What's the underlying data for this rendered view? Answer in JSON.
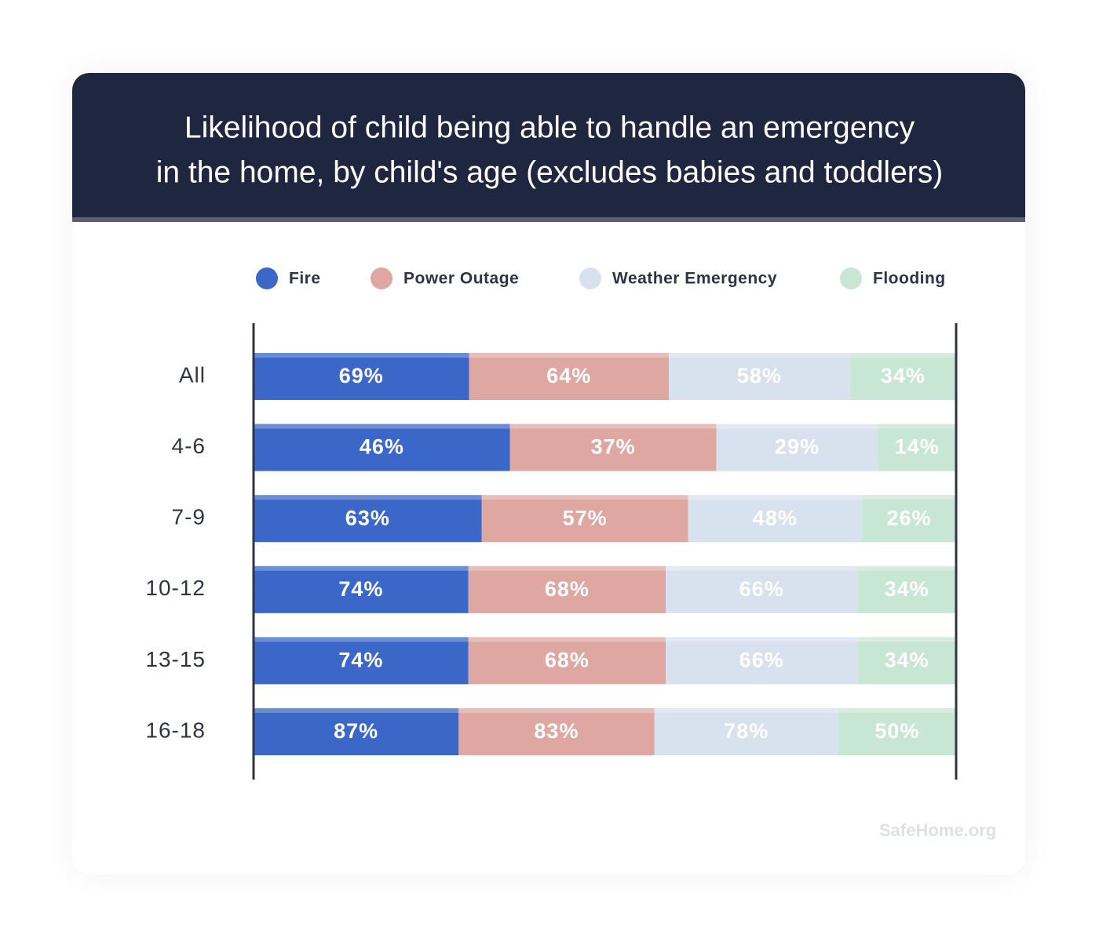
{
  "chart_data": {
    "type": "bar-normalized-stacked",
    "title": [
      "Likelihood of child being able to handle an emergency",
      "in the home, by child's age (excludes babies and toddlers)"
    ],
    "categories": [
      "All",
      "4-6",
      "7-9",
      "10-12",
      "13-15",
      "16-18"
    ],
    "series": [
      {
        "name": "Fire",
        "color": "#3a67c8",
        "values": [
          69,
          46,
          63,
          74,
          74,
          87
        ],
        "value_labels": [
          "69%",
          "46%",
          "63%",
          "74%",
          "74%",
          "87%"
        ]
      },
      {
        "name": "Power Outage",
        "color": "#dfa7a1",
        "values": [
          64,
          37,
          57,
          68,
          68,
          83
        ],
        "value_labels": [
          "64%",
          "37%",
          "57%",
          "68%",
          "68%",
          "83%"
        ]
      },
      {
        "name": "Weather Emergency",
        "color": "#d8e2ee",
        "values": [
          58,
          29,
          48,
          66,
          66,
          78
        ],
        "value_labels": [
          "58%",
          "29%",
          "48%",
          "66%",
          "66%",
          "78%"
        ]
      },
      {
        "name": "Flooding",
        "color": "#c8e6d4",
        "values": [
          34,
          14,
          26,
          34,
          34,
          50
        ],
        "value_labels": [
          "34%",
          "14%",
          "26%",
          "34%",
          "34%",
          "50%"
        ]
      }
    ],
    "source": "SafeHome.org"
  }
}
